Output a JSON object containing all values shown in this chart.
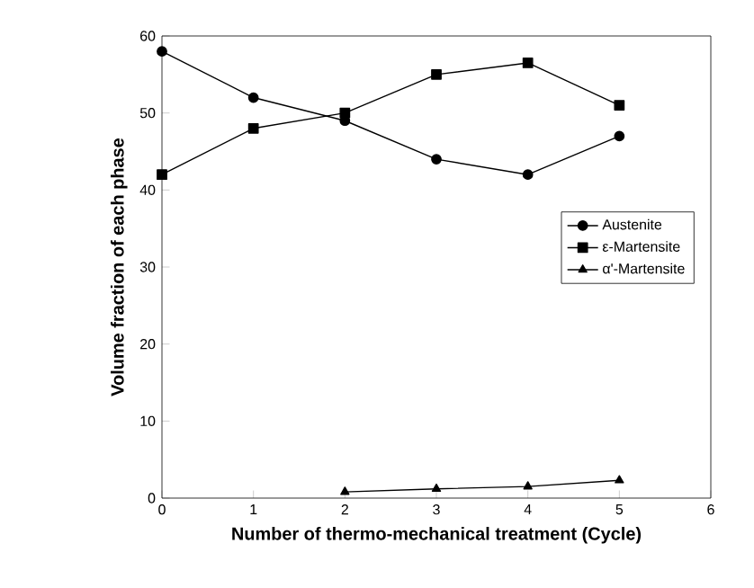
{
  "chart_data": {
    "type": "line",
    "xlabel": "Number of thermo-mechanical treatment (Cycle)",
    "ylabel": "Volume fraction of each phase",
    "xlim": [
      0,
      6
    ],
    "xticks": [
      0,
      1,
      2,
      3,
      4,
      5,
      6
    ],
    "ylim": [
      0,
      60
    ],
    "yticks": [
      0,
      10,
      20,
      30,
      40,
      50,
      60
    ],
    "x": [
      0,
      1,
      2,
      3,
      4,
      5
    ],
    "series": [
      {
        "name": "Austenite",
        "color": "#000000",
        "marker": "circle",
        "values": [
          58,
          52,
          49,
          44,
          42,
          47
        ]
      },
      {
        "name": "ε-Martensite",
        "color": "#000000",
        "marker": "square",
        "values": [
          42,
          48,
          50,
          55,
          56.5,
          51
        ]
      },
      {
        "name": "α'-Martensite",
        "color": "#000000",
        "marker": "triangle",
        "values": [
          null,
          null,
          0.8,
          1.2,
          1.5,
          2.3
        ]
      }
    ],
    "legend": "right",
    "grid": false,
    "line_style": "solid"
  }
}
